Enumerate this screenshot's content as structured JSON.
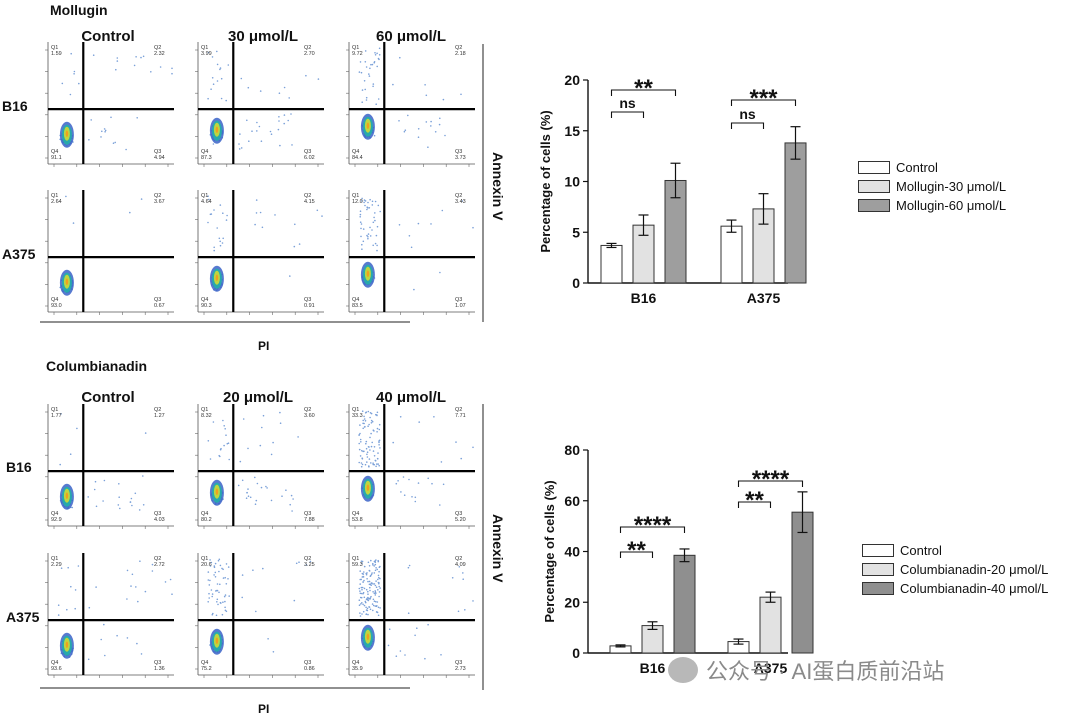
{
  "top": {
    "section_title": "Mollugin",
    "conditions": [
      "Control",
      "30 μmol/L",
      "60 μmol/L"
    ],
    "rows": [
      "B16",
      "A375"
    ],
    "side_label": "Annexin V",
    "x_label": "PI",
    "plots": [
      [
        {
          "q1": "1.59",
          "q2": "2.32",
          "q3": "4.94",
          "q4": "91.1"
        },
        {
          "q1": "3.99",
          "q2": "2.70",
          "q3": "6.02",
          "q4": "87.3"
        },
        {
          "q1": "9.72",
          "q2": "2.18",
          "q3": "3.73",
          "q4": "84.4"
        }
      ],
      [
        {
          "q1": "2.64",
          "q2": "3.67",
          "q3": "0.67",
          "q4": "93.0"
        },
        {
          "q1": "4.64",
          "q2": "4.15",
          "q3": "0.91",
          "q4": "90.3"
        },
        {
          "q1": "12.0",
          "q2": "3.43",
          "q3": "1.07",
          "q4": "83.5"
        }
      ]
    ]
  },
  "bottom": {
    "section_title": "Columbianadin",
    "conditions": [
      "Control",
      "20 μmol/L",
      "40 μmol/L"
    ],
    "rows": [
      "B16",
      "A375"
    ],
    "side_label": "Annexin V",
    "x_label": "PI",
    "plots": [
      [
        {
          "q1": "1.77",
          "q2": "1.27",
          "q3": "4.03",
          "q4": "92.9"
        },
        {
          "q1": "8.32",
          "q2": "3.60",
          "q3": "7.88",
          "q4": "80.2"
        },
        {
          "q1": "33.3",
          "q2": "7.71",
          "q3": "5.20",
          "q4": "53.8"
        }
      ],
      [
        {
          "q1": "2.29",
          "q2": "2.72",
          "q3": "1.36",
          "q4": "93.6"
        },
        {
          "q1": "20.6",
          "q2": "3.25",
          "q3": "0.86",
          "q4": "75.2"
        },
        {
          "q1": "59.3",
          "q2": "4.09",
          "q3": "2.73",
          "q4": "35.9"
        }
      ]
    ]
  },
  "chart_data": [
    {
      "type": "bar",
      "categories": [
        "B16",
        "A375"
      ],
      "ylabel": "Percentage of cells (%)",
      "ylim": [
        0,
        20
      ],
      "yticks": [
        "0",
        "5",
        "10",
        "15",
        "20"
      ],
      "series": [
        {
          "name": "Control",
          "values": [
            3.7,
            5.6
          ],
          "errors": [
            0.2,
            0.6
          ],
          "color": "#ffffff"
        },
        {
          "name": "Mollugin-30 μmol/L",
          "values": [
            5.7,
            7.3
          ],
          "errors": [
            1.0,
            1.5
          ],
          "color": "#e2e2e2"
        },
        {
          "name": "Mollugin-60 μmol/L",
          "values": [
            10.1,
            13.8
          ],
          "errors": [
            1.7,
            1.6
          ],
          "color": "#9e9e9e"
        }
      ],
      "significance": [
        {
          "category": "B16",
          "pair": "Control vs 30",
          "label": "ns"
        },
        {
          "category": "B16",
          "pair": "Control vs 60",
          "label": "**"
        },
        {
          "category": "A375",
          "pair": "Control vs 30",
          "label": "ns"
        },
        {
          "category": "A375",
          "pair": "Control vs 60",
          "label": "***"
        }
      ],
      "legend_position": "right"
    },
    {
      "type": "bar",
      "categories": [
        "B16",
        "A375"
      ],
      "ylabel": "Percentage of cells (%)",
      "ylim": [
        0,
        80
      ],
      "yticks": [
        "0",
        "20",
        "40",
        "60",
        "80"
      ],
      "series": [
        {
          "name": "Control",
          "values": [
            2.8,
            4.5
          ],
          "errors": [
            0.4,
            1.0
          ],
          "color": "#ffffff"
        },
        {
          "name": "Columbianadin-20 μmol/L",
          "values": [
            10.8,
            22.0
          ],
          "errors": [
            1.5,
            2.0
          ],
          "color": "#e2e2e2"
        },
        {
          "name": "Columbianadin-40 μmol/L",
          "values": [
            38.5,
            55.5
          ],
          "errors": [
            2.5,
            8.0
          ],
          "color": "#8f8f8f"
        }
      ],
      "significance": [
        {
          "category": "B16",
          "pair": "Control vs 20",
          "label": "**"
        },
        {
          "category": "B16",
          "pair": "Control vs 40",
          "label": "****"
        },
        {
          "category": "A375",
          "pair": "Control vs 20",
          "label": "**"
        },
        {
          "category": "A375",
          "pair": "Control vs 40",
          "label": "****"
        }
      ],
      "legend_position": "right"
    }
  ],
  "watermark": "公众号 · AI蛋白质前沿站"
}
